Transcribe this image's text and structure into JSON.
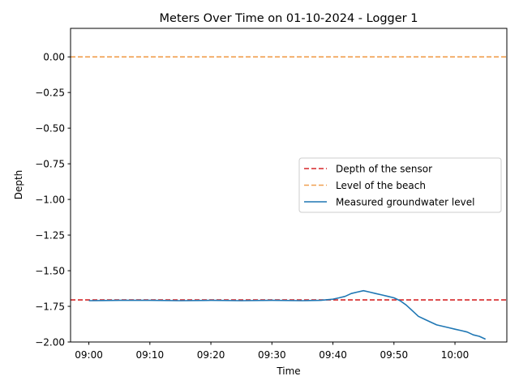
{
  "chart_data": {
    "type": "line",
    "title": "Meters Over Time on 01-10-2024 - Logger 1",
    "xlabel": "Time",
    "ylabel": "Depth",
    "xlim": [
      "08:57",
      "10:08.5"
    ],
    "ylim": [
      -2.0,
      0.2
    ],
    "x_ticks": [
      "09:00",
      "09:10",
      "09:20",
      "09:30",
      "09:40",
      "09:50",
      "10:00"
    ],
    "y_ticks": [
      0.0,
      -0.25,
      -0.5,
      -0.75,
      -1.0,
      -1.25,
      -1.5,
      -1.75,
      -2.0
    ],
    "y_tick_labels": [
      "0.00",
      "−0.25",
      "−0.50",
      "−0.75",
      "−1.00",
      "−1.25",
      "−1.50",
      "−1.75",
      "−2.00"
    ],
    "grid": false,
    "legend_position": "center-right",
    "reference_lines": [
      {
        "name": "Depth of the sensor",
        "y": -1.705,
        "style": "dashed",
        "color": "#d62728"
      },
      {
        "name": "Level of the beach",
        "y": 0.0,
        "style": "dashed",
        "color": "#f0a050"
      }
    ],
    "series": [
      {
        "name": "Measured groundwater level",
        "color": "#1f77b4",
        "x": [
          "09:00",
          "09:05",
          "09:10",
          "09:15",
          "09:20",
          "09:25",
          "09:30",
          "09:35",
          "09:38",
          "09:40",
          "09:41",
          "09:42",
          "09:43",
          "09:44",
          "09:45",
          "09:46",
          "09:47",
          "09:48",
          "09:49",
          "09:50",
          "09:51",
          "09:52",
          "09:53",
          "09:54",
          "09:55",
          "09:56",
          "09:57",
          "09:58",
          "09:59",
          "10:00",
          "10:01",
          "10:02",
          "10:03",
          "10:04",
          "10:05"
        ],
        "y": [
          -1.71,
          -1.708,
          -1.708,
          -1.71,
          -1.708,
          -1.71,
          -1.708,
          -1.71,
          -1.708,
          -1.7,
          -1.69,
          -1.68,
          -1.66,
          -1.65,
          -1.64,
          -1.65,
          -1.66,
          -1.67,
          -1.68,
          -1.69,
          -1.71,
          -1.74,
          -1.78,
          -1.82,
          -1.84,
          -1.86,
          -1.88,
          -1.89,
          -1.9,
          -1.91,
          -1.92,
          -1.93,
          -1.95,
          -1.96,
          -1.98
        ]
      }
    ]
  }
}
